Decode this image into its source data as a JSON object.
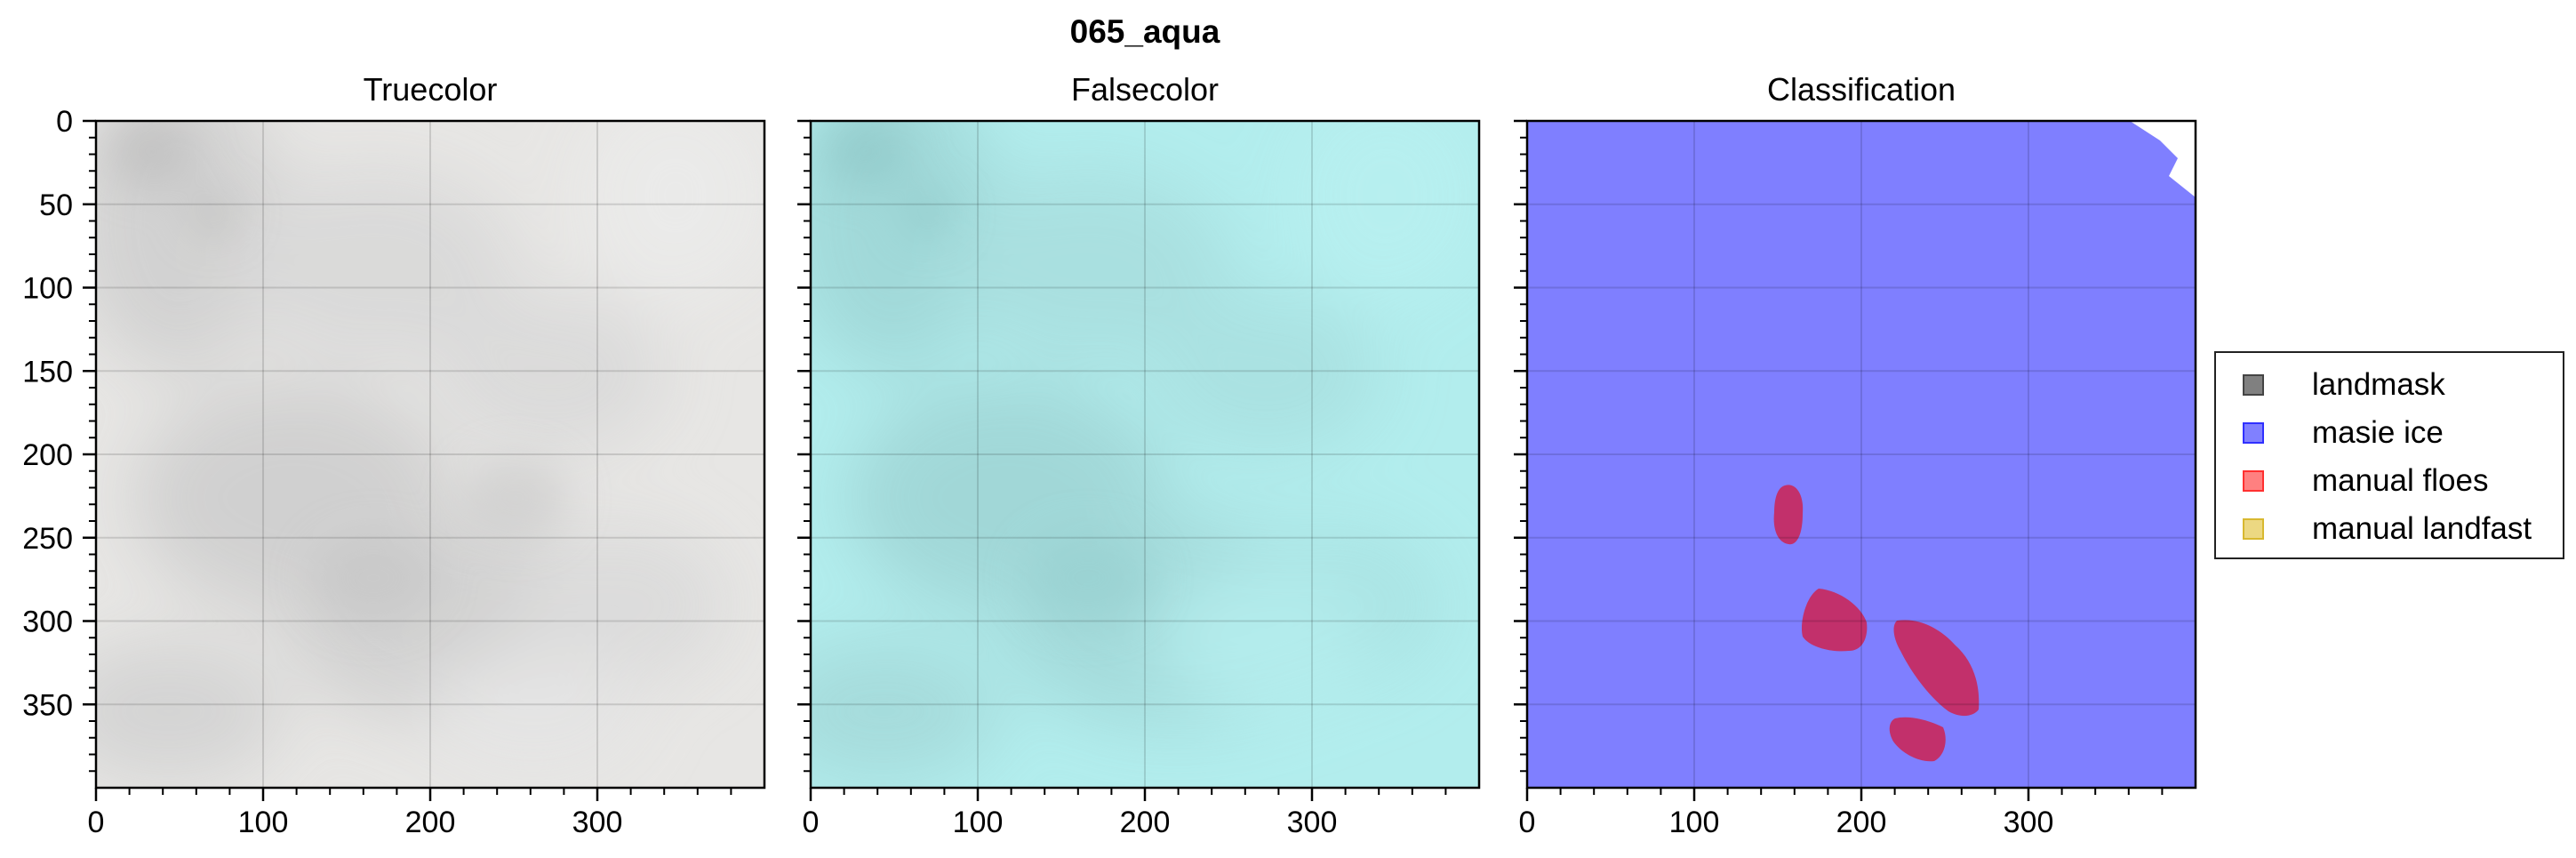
{
  "figure": {
    "suptitle": "065_aqua",
    "panels": [
      {
        "title": "Truecolor"
      },
      {
        "title": "Falsecolor"
      },
      {
        "title": "Classification"
      }
    ]
  },
  "axes": {
    "y_ticks": [
      0,
      50,
      100,
      150,
      200,
      250,
      300,
      350
    ],
    "x_ticks": [
      0,
      100,
      200,
      300
    ],
    "x_range": [
      0,
      400
    ],
    "y_range": [
      0,
      400
    ],
    "grid": true
  },
  "legend": {
    "placement": "right",
    "items": [
      {
        "label": "landmask",
        "color": "#808080",
        "edge": "#444444"
      },
      {
        "label": "masie ice",
        "color": "#8080ff",
        "edge": "#3030ff"
      },
      {
        "label": "manual floes",
        "color": "#ff8080",
        "edge": "#ff3030"
      },
      {
        "label": "manual landfast",
        "color": "#ecd882",
        "edge": "#d8b830"
      }
    ]
  },
  "colors": {
    "truecolor_base": "#e6e5e3",
    "falsecolor_base": "#b0ecec",
    "masie_ice": "#7f7fff",
    "floe_overlay": "#c0306a"
  }
}
